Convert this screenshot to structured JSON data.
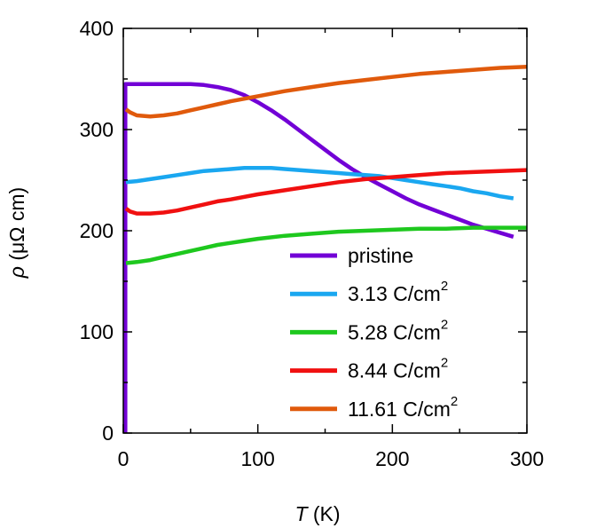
{
  "chart_data": {
    "type": "line",
    "title": "",
    "xlabel": {
      "symbol": "T",
      "unit": "(K)"
    },
    "ylabel": {
      "symbol": "ρ",
      "unit": "(μΩ cm)"
    },
    "xlim": [
      0,
      300
    ],
    "ylim": [
      0,
      400
    ],
    "xticks": [
      0,
      100,
      200,
      300
    ],
    "yticks": [
      0,
      100,
      200,
      300,
      400
    ],
    "grid": false,
    "legend_position": "lower-right",
    "series": [
      {
        "name": "pristine",
        "unit": "",
        "color": "#7200d6",
        "x": [
          1.5,
          1.5,
          2,
          10,
          20,
          30,
          40,
          50,
          60,
          70,
          80,
          90,
          100,
          110,
          120,
          130,
          140,
          150,
          160,
          170,
          180,
          190,
          200,
          210,
          220,
          230,
          240,
          250,
          260,
          270,
          280,
          290
        ],
        "y": [
          0,
          345,
          345,
          345,
          345,
          345,
          345,
          345,
          344,
          342,
          339,
          334,
          327,
          319,
          310,
          300,
          290,
          280,
          270,
          261,
          253,
          246,
          239,
          232,
          226,
          221,
          216,
          211,
          206,
          202,
          198,
          194
        ]
      },
      {
        "name": "3.13 C/cm",
        "unit": "2",
        "color": "#1aa7f0",
        "x": [
          2,
          10,
          20,
          30,
          40,
          50,
          60,
          70,
          80,
          90,
          100,
          110,
          120,
          130,
          140,
          150,
          160,
          170,
          180,
          190,
          200,
          210,
          220,
          230,
          240,
          250,
          260,
          270,
          280,
          290
        ],
        "y": [
          248,
          249,
          251,
          253,
          255,
          257,
          259,
          260,
          261,
          262,
          262,
          262,
          261,
          260,
          259,
          258,
          257,
          256,
          255,
          254,
          252,
          250,
          248,
          246,
          244,
          242,
          239,
          237,
          234,
          232
        ]
      },
      {
        "name": "5.28 C/cm",
        "unit": "2",
        "color": "#1ec81e",
        "x": [
          2,
          10,
          20,
          30,
          40,
          50,
          60,
          70,
          80,
          90,
          100,
          120,
          140,
          160,
          180,
          200,
          220,
          240,
          260,
          280,
          300
        ],
        "y": [
          168,
          169,
          171,
          174,
          177,
          180,
          183,
          186,
          188,
          190,
          192,
          195,
          197,
          199,
          200,
          201,
          202,
          202,
          203,
          203,
          203
        ]
      },
      {
        "name": "8.44 C/cm",
        "unit": "2",
        "color": "#f01010",
        "x": [
          2,
          5,
          10,
          20,
          30,
          40,
          50,
          60,
          70,
          80,
          100,
          120,
          140,
          160,
          180,
          200,
          220,
          240,
          260,
          280,
          300
        ],
        "y": [
          222,
          219,
          217,
          217,
          218,
          220,
          223,
          226,
          229,
          231,
          236,
          240,
          244,
          248,
          251,
          253,
          255,
          257,
          258,
          259,
          260
        ]
      },
      {
        "name": "11.61 C/cm",
        "unit": "2",
        "color": "#e05a0c",
        "x": [
          2,
          5,
          10,
          20,
          30,
          40,
          50,
          60,
          70,
          80,
          100,
          120,
          140,
          160,
          180,
          200,
          220,
          240,
          260,
          280,
          300
        ],
        "y": [
          320,
          317,
          314,
          313,
          314,
          316,
          319,
          322,
          325,
          328,
          333,
          338,
          342,
          346,
          349,
          352,
          355,
          357,
          359,
          361,
          362
        ]
      }
    ]
  }
}
